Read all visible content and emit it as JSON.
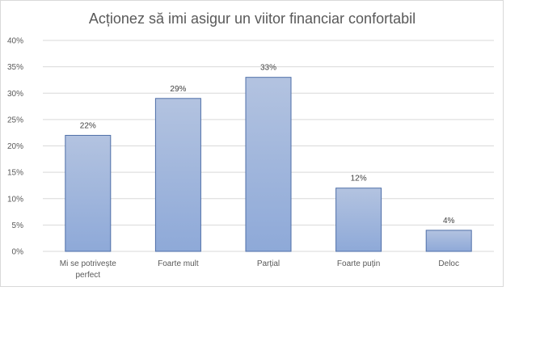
{
  "chart_data": {
    "type": "bar",
    "title": "Acționez să imi asigur un viitor financiar confortabil",
    "categories": [
      [
        "Mi se potrivește",
        "perfect"
      ],
      [
        "Foarte mult"
      ],
      [
        "Parțial"
      ],
      [
        "Foarte puțin"
      ],
      [
        "Deloc"
      ]
    ],
    "values": [
      22,
      29,
      33,
      12,
      4
    ],
    "data_labels": [
      "22%",
      "29%",
      "33%",
      "12%",
      "4%"
    ],
    "ylim": [
      0,
      40
    ],
    "y_ticks": [
      "0%",
      "5%",
      "10%",
      "15%",
      "20%",
      "25%",
      "30%",
      "35%",
      "40%"
    ],
    "grid": true,
    "legend": "none",
    "colors": {
      "bar_top": "#b3c3e0",
      "bar_bottom": "#8ea9d8",
      "bar_border": "#4f6fa8",
      "grid": "#d9d9d9"
    }
  }
}
